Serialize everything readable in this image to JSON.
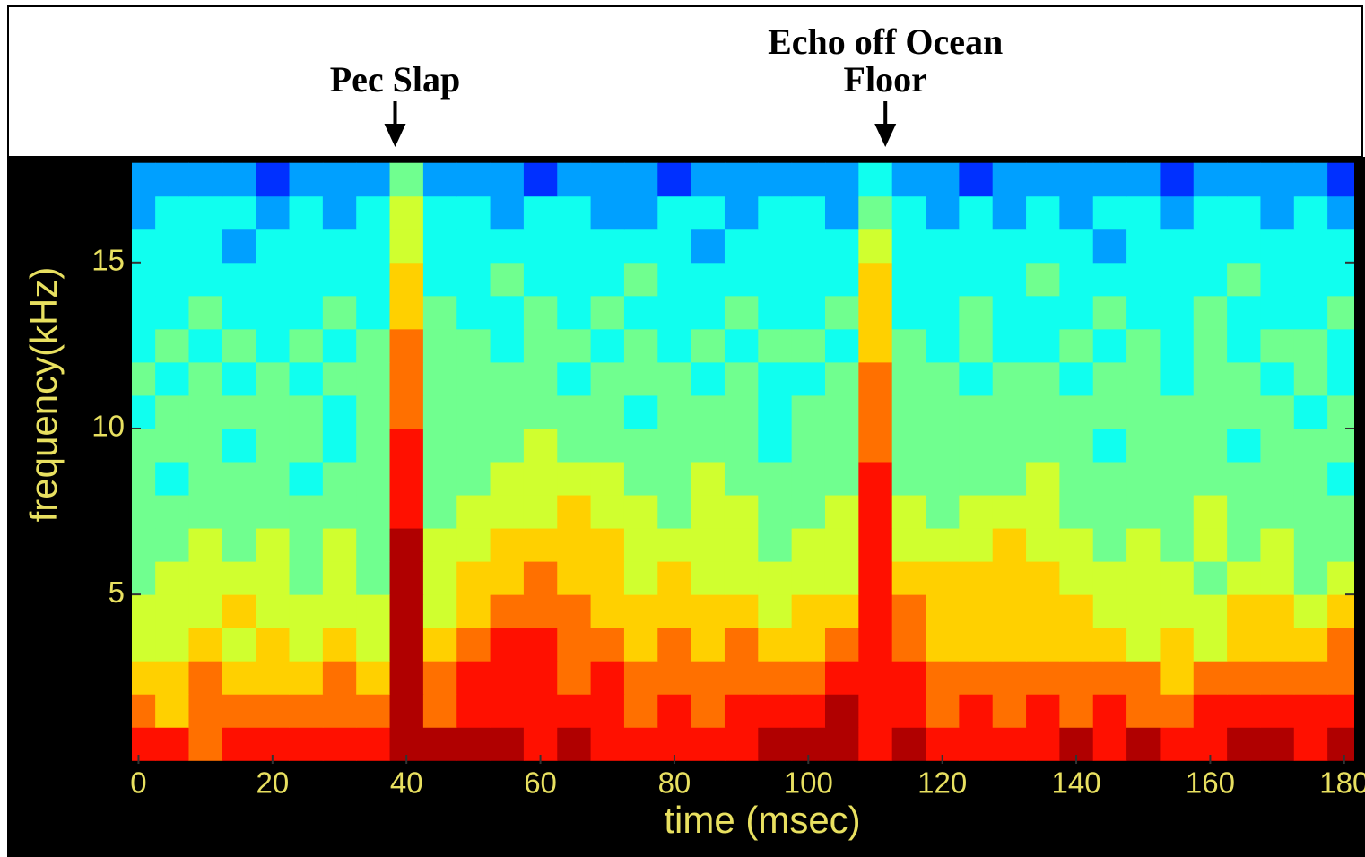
{
  "chart_data": {
    "type": "heatmap",
    "x_label": "time (msec)",
    "y_label": "frequency(kHz)",
    "xlim": [
      -1,
      181.5
    ],
    "ylim": [
      -0.1,
      18.1
    ],
    "xticks": [
      0,
      20,
      40,
      60,
      80,
      100,
      120,
      140,
      160,
      180
    ],
    "yticks": [
      5,
      10,
      15
    ],
    "x": [
      0,
      5,
      10,
      15,
      20,
      25,
      30,
      35,
      40,
      45,
      50,
      55,
      60,
      65,
      70,
      75,
      80,
      85,
      90,
      95,
      100,
      105,
      110,
      115,
      120,
      125,
      130,
      135,
      140,
      145,
      150,
      155,
      160,
      165,
      170,
      175,
      180
    ],
    "y": [
      0.5,
      1.5,
      2.5,
      3.5,
      4.5,
      5.5,
      6.5,
      7.5,
      8.5,
      9.5,
      10.5,
      11.5,
      12.5,
      13.5,
      14.5,
      15.5,
      16.5,
      17.5
    ],
    "colormap": [
      "#000090",
      "#0030ff",
      "#00a0ff",
      "#10ffef",
      "#70ff8f",
      "#d0ff2f",
      "#ffd000",
      "#ff7000",
      "#ff1000",
      "#b00000"
    ],
    "values": [
      [
        8,
        8,
        7,
        8,
        8,
        8,
        8,
        8,
        9,
        9,
        9,
        9,
        8,
        9,
        8,
        8,
        8,
        8,
        8,
        9,
        9,
        9,
        8,
        9,
        8,
        8,
        8,
        8,
        9,
        8,
        9,
        8,
        8,
        9,
        9,
        8,
        9
      ],
      [
        7,
        6,
        7,
        7,
        7,
        7,
        7,
        7,
        9,
        7,
        8,
        8,
        8,
        8,
        8,
        7,
        8,
        7,
        8,
        8,
        8,
        9,
        8,
        8,
        7,
        8,
        7,
        8,
        7,
        8,
        7,
        7,
        8,
        8,
        8,
        8,
        8
      ],
      [
        6,
        6,
        7,
        6,
        6,
        6,
        7,
        6,
        9,
        7,
        8,
        8,
        8,
        7,
        8,
        7,
        7,
        7,
        7,
        7,
        7,
        8,
        8,
        8,
        7,
        7,
        7,
        7,
        7,
        7,
        7,
        6,
        7,
        7,
        7,
        7,
        7
      ],
      [
        5,
        5,
        6,
        5,
        6,
        5,
        6,
        5,
        9,
        6,
        7,
        8,
        8,
        7,
        7,
        6,
        7,
        6,
        7,
        6,
        6,
        7,
        8,
        7,
        6,
        6,
        6,
        6,
        6,
        6,
        5,
        6,
        5,
        6,
        6,
        6,
        7
      ],
      [
        5,
        5,
        5,
        6,
        5,
        5,
        5,
        5,
        9,
        5,
        6,
        7,
        7,
        7,
        6,
        6,
        6,
        6,
        6,
        5,
        6,
        6,
        8,
        7,
        6,
        6,
        6,
        6,
        6,
        5,
        5,
        5,
        5,
        6,
        6,
        5,
        6
      ],
      [
        4,
        5,
        5,
        5,
        5,
        4,
        5,
        4,
        9,
        5,
        6,
        6,
        7,
        6,
        6,
        5,
        6,
        5,
        5,
        5,
        5,
        5,
        8,
        6,
        6,
        6,
        6,
        6,
        5,
        5,
        5,
        5,
        4,
        5,
        5,
        4,
        5
      ],
      [
        4,
        4,
        5,
        4,
        5,
        4,
        5,
        4,
        9,
        5,
        5,
        6,
        6,
        6,
        6,
        5,
        5,
        5,
        5,
        4,
        5,
        5,
        8,
        5,
        5,
        5,
        6,
        5,
        5,
        4,
        5,
        4,
        5,
        4,
        5,
        4,
        4
      ],
      [
        4,
        4,
        4,
        4,
        4,
        4,
        4,
        4,
        8,
        4,
        5,
        5,
        5,
        6,
        5,
        5,
        4,
        5,
        5,
        4,
        4,
        5,
        8,
        5,
        4,
        5,
        5,
        5,
        4,
        4,
        4,
        4,
        5,
        4,
        4,
        4,
        4
      ],
      [
        4,
        3,
        4,
        4,
        4,
        3,
        4,
        4,
        8,
        4,
        4,
        5,
        5,
        5,
        5,
        4,
        4,
        5,
        4,
        4,
        4,
        4,
        8,
        4,
        4,
        4,
        4,
        5,
        4,
        4,
        4,
        4,
        4,
        4,
        4,
        4,
        3
      ],
      [
        4,
        4,
        4,
        3,
        4,
        4,
        3,
        4,
        8,
        4,
        4,
        4,
        5,
        4,
        4,
        4,
        4,
        4,
        4,
        3,
        4,
        4,
        7,
        4,
        4,
        4,
        4,
        4,
        4,
        3,
        4,
        4,
        4,
        3,
        4,
        4,
        4
      ],
      [
        3,
        4,
        4,
        4,
        4,
        4,
        3,
        4,
        7,
        4,
        4,
        4,
        4,
        4,
        4,
        3,
        4,
        4,
        4,
        3,
        4,
        4,
        7,
        4,
        4,
        4,
        4,
        4,
        4,
        4,
        4,
        4,
        4,
        4,
        4,
        3,
        4
      ],
      [
        4,
        3,
        4,
        3,
        4,
        3,
        4,
        4,
        7,
        4,
        4,
        4,
        4,
        3,
        4,
        4,
        4,
        3,
        4,
        3,
        3,
        4,
        7,
        4,
        4,
        3,
        4,
        4,
        3,
        4,
        4,
        3,
        4,
        4,
        3,
        4,
        3
      ],
      [
        3,
        4,
        3,
        4,
        3,
        4,
        3,
        4,
        7,
        4,
        4,
        3,
        4,
        4,
        3,
        4,
        3,
        4,
        3,
        4,
        4,
        3,
        6,
        4,
        3,
        4,
        3,
        3,
        4,
        3,
        4,
        3,
        4,
        3,
        4,
        4,
        3
      ],
      [
        3,
        3,
        4,
        3,
        3,
        3,
        4,
        3,
        6,
        4,
        3,
        3,
        4,
        3,
        4,
        3,
        3,
        3,
        4,
        3,
        3,
        4,
        6,
        3,
        3,
        4,
        3,
        3,
        3,
        4,
        3,
        3,
        4,
        3,
        3,
        3,
        4
      ],
      [
        3,
        3,
        3,
        3,
        3,
        3,
        3,
        3,
        6,
        3,
        3,
        4,
        3,
        3,
        3,
        4,
        3,
        3,
        3,
        3,
        3,
        3,
        6,
        3,
        3,
        3,
        3,
        4,
        3,
        3,
        3,
        3,
        3,
        4,
        3,
        3,
        3
      ],
      [
        3,
        3,
        3,
        2,
        3,
        3,
        3,
        3,
        5,
        3,
        3,
        3,
        3,
        3,
        3,
        3,
        3,
        2,
        3,
        3,
        3,
        3,
        5,
        3,
        3,
        3,
        3,
        3,
        3,
        2,
        3,
        3,
        3,
        3,
        3,
        3,
        3
      ],
      [
        2,
        3,
        3,
        3,
        2,
        3,
        2,
        3,
        5,
        3,
        3,
        2,
        3,
        3,
        2,
        2,
        3,
        3,
        2,
        3,
        3,
        2,
        4,
        3,
        2,
        3,
        2,
        3,
        2,
        3,
        3,
        2,
        3,
        3,
        2,
        3,
        2
      ],
      [
        2,
        2,
        2,
        2,
        1,
        2,
        2,
        2,
        4,
        2,
        2,
        2,
        1,
        2,
        2,
        2,
        1,
        2,
        2,
        2,
        2,
        2,
        3,
        2,
        2,
        1,
        2,
        2,
        2,
        2,
        2,
        1,
        2,
        2,
        2,
        2,
        1
      ]
    ],
    "annotations": [
      {
        "text": [
          "Pec Slap"
        ],
        "x": 38.3
      },
      {
        "text": [
          "Echo off Ocean",
          "Floor"
        ],
        "x": 111.5
      }
    ]
  }
}
